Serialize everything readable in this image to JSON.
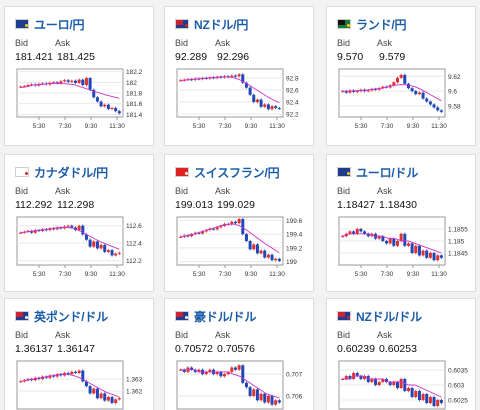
{
  "cards": [
    {
      "pair": "ユーロ/円",
      "flag": {
        "bg": "#1f3c8f",
        "q": "#1f3c8f",
        "d": "#ffcc00"
      },
      "bid_label": "Bid",
      "ask_label": "Ask",
      "bid": "181.421",
      "ask": "181.425",
      "chart_data": {
        "type": "candlestick",
        "x_ticks": [
          "5:30",
          "7:30",
          "9:30",
          "11:30"
        ],
        "y_ticks": [
          "182.2",
          "182",
          "181.8",
          "181.6",
          "181.4"
        ],
        "ylim": [
          181.35,
          182.25
        ],
        "close": [
          181.92,
          181.93,
          181.95,
          181.96,
          181.94,
          181.97,
          181.98,
          181.96,
          181.99,
          182.0,
          181.98,
          182.02,
          182.04,
          182.01,
          182.03,
          181.99,
          182.05,
          181.95,
          182.08,
          181.86,
          181.72,
          181.64,
          181.55,
          181.58,
          181.5,
          181.52,
          181.46,
          181.42
        ]
      },
      "ma": [
        181.9,
        181.92,
        181.95,
        181.96,
        181.97,
        181.98,
        181.98,
        181.97,
        181.96,
        181.92,
        181.88,
        181.84,
        181.8,
        181.76,
        181.73,
        181.7
      ],
      "accent": "#cc33cc"
    },
    {
      "pair": "NZドル/円",
      "flag": {
        "bg": "#1f3c8f",
        "q": "#cc2233",
        "d": "#cc2233"
      },
      "bid_label": "Bid",
      "ask_label": "Ask",
      "bid": "92.289",
      "ask": "92.296",
      "chart_data": {
        "type": "candlestick",
        "x_ticks": [
          "5:30",
          "7:30",
          "9:30",
          "11:30"
        ],
        "y_ticks": [
          "92.8",
          "92.6",
          "92.4",
          "92.2"
        ],
        "ylim": [
          92.15,
          92.95
        ],
        "close": [
          92.76,
          92.77,
          92.78,
          92.77,
          92.79,
          92.78,
          92.8,
          92.79,
          92.81,
          92.8,
          92.82,
          92.81,
          92.83,
          92.82,
          92.84,
          92.83,
          92.86,
          92.72,
          92.64,
          92.52,
          92.4,
          92.44,
          92.32,
          92.36,
          92.28,
          92.33,
          92.3,
          92.29
        ]
      },
      "ma": [
        92.76,
        92.77,
        92.78,
        92.79,
        92.8,
        92.81,
        92.82,
        92.82,
        92.81,
        92.77,
        92.71,
        92.64,
        92.57,
        92.5,
        92.44,
        92.39
      ],
      "accent": "#cc33cc"
    },
    {
      "pair": "ランド/円",
      "flag": {
        "bg": "#1a7a3a",
        "q": "#111111",
        "d": "#ffcc00"
      },
      "bid_label": "Bid",
      "ask_label": "Ask",
      "bid": "9.570",
      "ask": "9.579",
      "chart_data": {
        "type": "candlestick",
        "x_ticks": [
          "5:30",
          "7:30",
          "9:30",
          "11:30"
        ],
        "y_ticks": [
          "9.62",
          "9.6",
          "9.58"
        ],
        "ylim": [
          9.565,
          9.63
        ],
        "close": [
          9.6,
          9.598,
          9.601,
          9.599,
          9.6,
          9.602,
          9.6,
          9.601,
          9.603,
          9.602,
          9.604,
          9.606,
          9.605,
          9.608,
          9.612,
          9.618,
          9.622,
          9.61,
          9.604,
          9.6,
          9.596,
          9.598,
          9.59,
          9.586,
          9.582,
          9.578,
          9.574,
          9.572
        ]
      },
      "ma": [
        9.6,
        9.6,
        9.601,
        9.601,
        9.602,
        9.603,
        9.604,
        9.606,
        9.608,
        9.609,
        9.608,
        9.606,
        9.602,
        9.597,
        9.592,
        9.587
      ],
      "accent": "#cc33cc"
    },
    {
      "pair": "カナダドル/円",
      "flag": {
        "bg": "#ffffff",
        "q": "#ffffff",
        "d": "#dd2222"
      },
      "bid_label": "Bid",
      "ask_label": "Ask",
      "bid": "112.292",
      "ask": "112.298",
      "chart_data": {
        "type": "candlestick",
        "x_ticks": [
          "5:30",
          "7:30",
          "9:30",
          "11:30"
        ],
        "y_ticks": [
          "112.6",
          "112.4",
          "112.2"
        ],
        "ylim": [
          112.15,
          112.7
        ],
        "close": [
          112.52,
          112.53,
          112.54,
          112.52,
          112.55,
          112.54,
          112.56,
          112.55,
          112.57,
          112.56,
          112.58,
          112.57,
          112.59,
          112.6,
          112.58,
          112.55,
          112.6,
          112.5,
          112.44,
          112.36,
          112.42,
          112.34,
          112.38,
          112.3,
          112.32,
          112.26,
          112.28,
          112.29
        ]
      },
      "ma": [
        112.52,
        112.53,
        112.54,
        112.55,
        112.56,
        112.57,
        112.58,
        112.58,
        112.57,
        112.54,
        112.5,
        112.46,
        112.42,
        112.39,
        112.36,
        112.33
      ],
      "accent": "#cc33cc"
    },
    {
      "pair": "スイスフラン/円",
      "flag": {
        "bg": "#dd2222",
        "q": "#dd2222",
        "d": "#ffffff"
      },
      "bid_label": "Bid",
      "ask_label": "Ask",
      "bid": "199.013",
      "ask": "199.029",
      "chart_data": {
        "type": "candlestick",
        "x_ticks": [
          "5:30",
          "7:30",
          "9:30",
          "11:30"
        ],
        "y_ticks": [
          "199.6",
          "199.4",
          "199.2",
          "199"
        ],
        "ylim": [
          198.95,
          199.65
        ],
        "close": [
          199.36,
          199.38,
          199.37,
          199.4,
          199.42,
          199.41,
          199.44,
          199.46,
          199.48,
          199.47,
          199.5,
          199.52,
          199.55,
          199.54,
          199.58,
          199.56,
          199.62,
          199.4,
          199.3,
          199.18,
          199.25,
          199.12,
          199.16,
          199.06,
          199.1,
          199.02,
          199.04,
          199.01
        ]
      },
      "ma": [
        199.36,
        199.38,
        199.4,
        199.43,
        199.46,
        199.49,
        199.52,
        199.54,
        199.55,
        199.52,
        199.46,
        199.39,
        199.32,
        199.25,
        199.19,
        199.13
      ],
      "accent": "#cc33cc"
    },
    {
      "pair": "ユーロ/ドル",
      "flag": {
        "bg": "#1f3c8f",
        "q": "#1f3c8f",
        "d": "#ffcc00"
      },
      "bid_label": "Bid",
      "ask_label": "Ask",
      "bid": "1.18427",
      "ask": "1.18430",
      "chart_data": {
        "type": "candlestick",
        "x_ticks": [
          "5:30",
          "7:30",
          "9:30",
          "11:30"
        ],
        "y_ticks": [
          "1.1855",
          "1.185",
          "1.1845"
        ],
        "ylim": [
          1.184,
          1.186
        ],
        "close": [
          1.1852,
          1.1853,
          1.1854,
          1.1853,
          1.1855,
          1.1854,
          1.1853,
          1.1852,
          1.1853,
          1.1851,
          1.1852,
          1.185,
          1.1849,
          1.1851,
          1.1848,
          1.185,
          1.1853,
          1.1848,
          1.1849,
          1.1845,
          1.1848,
          1.1844,
          1.1846,
          1.1843,
          1.1845,
          1.1842,
          1.1844,
          1.1843
        ]
      },
      "ma": [
        1.1852,
        1.1853,
        1.1853,
        1.1853,
        1.1853,
        1.1852,
        1.1852,
        1.1851,
        1.1851,
        1.185,
        1.185,
        1.1849,
        1.1848,
        1.1847,
        1.1846,
        1.1845
      ],
      "accent": "#cc33cc"
    },
    {
      "pair": "英ポンド/ドル",
      "flag": {
        "bg": "#1f3c8f",
        "q": "#cc2233",
        "d": "#ffffff"
      },
      "bid_label": "Bid",
      "ask_label": "Ask",
      "bid": "1.36137",
      "ask": "1.36147",
      "chart_data": {
        "type": "candlestick",
        "x_ticks": [],
        "y_ticks": [
          "1.363",
          "1.362"
        ],
        "ylim": [
          1.3605,
          1.3645
        ],
        "close": [
          1.3628,
          1.3629,
          1.363,
          1.3629,
          1.3631,
          1.363,
          1.3632,
          1.3631,
          1.3633,
          1.3632,
          1.3634,
          1.3633,
          1.3635,
          1.3634,
          1.3636,
          1.3635,
          1.3637,
          1.3628,
          1.3624,
          1.3618,
          1.3622,
          1.3614,
          1.3618,
          1.3612,
          1.3615,
          1.361,
          1.3613,
          1.3614
        ]
      },
      "ma": [
        1.3628,
        1.3629,
        1.363,
        1.3631,
        1.3632,
        1.3633,
        1.3634,
        1.3634,
        1.3633,
        1.3631,
        1.3628,
        1.3625,
        1.3622,
        1.3619,
        1.3617,
        1.3615
      ],
      "accent": "#cc33cc"
    },
    {
      "pair": "豪ドル/ドル",
      "flag": {
        "bg": "#1f3c8f",
        "q": "#cc2233",
        "d": "#ffffff"
      },
      "bid_label": "Bid",
      "ask_label": "Ask",
      "bid": "0.70572",
      "ask": "0.70576",
      "chart_data": {
        "type": "candlestick",
        "x_ticks": [],
        "y_ticks": [
          "0.707",
          "0.706"
        ],
        "ylim": [
          0.7054,
          0.7076
        ],
        "close": [
          0.7072,
          0.7071,
          0.7073,
          0.7072,
          0.7071,
          0.7072,
          0.707,
          0.7071,
          0.7072,
          0.707,
          0.7071,
          0.7069,
          0.707,
          0.7071,
          0.7073,
          0.7072,
          0.7074,
          0.7066,
          0.7064,
          0.706,
          0.7063,
          0.7058,
          0.7061,
          0.7057,
          0.706,
          0.7056,
          0.7058,
          0.7057
        ]
      },
      "ma": [
        0.7072,
        0.7072,
        0.7072,
        0.7071,
        0.7071,
        0.7071,
        0.7071,
        0.7071,
        0.707,
        0.7069,
        0.7067,
        0.7065,
        0.7063,
        0.7061,
        0.706,
        0.7059
      ],
      "accent": "#cc33cc"
    },
    {
      "pair": "NZドル/ドル",
      "flag": {
        "bg": "#1f3c8f",
        "q": "#cc2233",
        "d": "#cc2233"
      },
      "bid_label": "Bid",
      "ask_label": "Ask",
      "bid": "0.60239",
      "ask": "0.60253",
      "chart_data": {
        "type": "candlestick",
        "x_ticks": [],
        "y_ticks": [
          "0.6035",
          "0.603",
          "0.6025"
        ],
        "ylim": [
          0.6022,
          0.6038
        ],
        "close": [
          0.6032,
          0.6033,
          0.6032,
          0.6034,
          0.6033,
          0.6032,
          0.6033,
          0.6031,
          0.6032,
          0.603,
          0.6031,
          0.6032,
          0.6031,
          0.603,
          0.6031,
          0.6029,
          0.6032,
          0.6028,
          0.6029,
          0.6026,
          0.6028,
          0.6025,
          0.6027,
          0.6024,
          0.6026,
          0.6023,
          0.6025,
          0.6024
        ]
      },
      "ma": [
        0.6032,
        0.6032,
        0.6033,
        0.6033,
        0.6032,
        0.6032,
        0.6032,
        0.6031,
        0.6031,
        0.6031,
        0.603,
        0.603,
        0.6029,
        0.6028,
        0.6027,
        0.6026
      ],
      "accent": "#cc33cc"
    }
  ]
}
